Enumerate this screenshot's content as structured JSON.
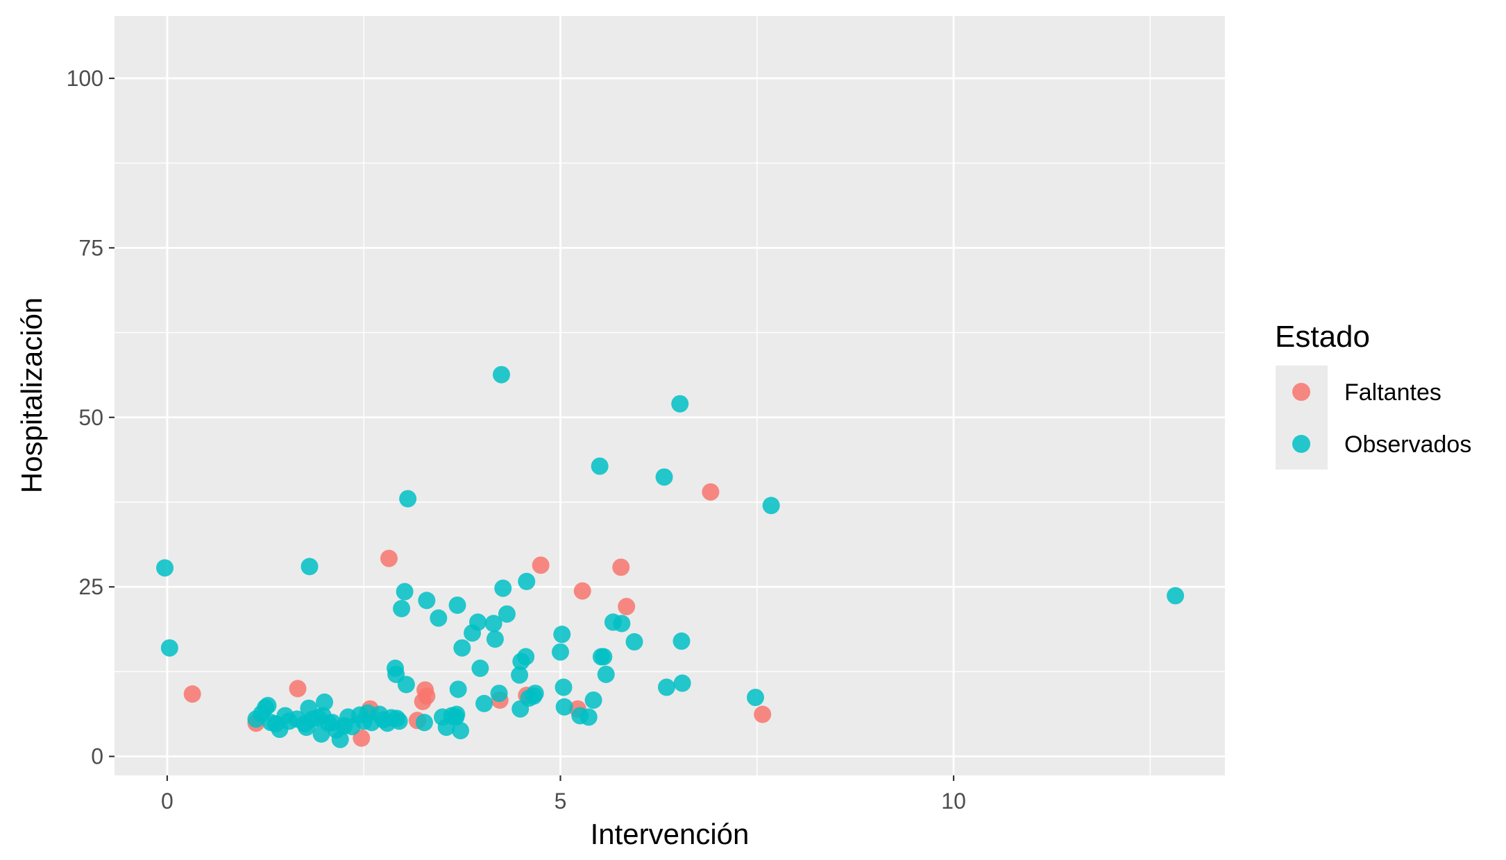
{
  "chart_data": {
    "type": "scatter",
    "title": "",
    "xlabel": "Intervención",
    "ylabel": "Hospitalización",
    "xlim": [
      -0.67,
      13.45
    ],
    "ylim": [
      -2.8,
      109.2
    ],
    "x_ticks": [
      0,
      5,
      10
    ],
    "y_ticks": [
      0,
      25,
      50,
      75,
      100
    ],
    "grid": true,
    "legend": {
      "title": "Estado",
      "position": "right"
    },
    "series": [
      {
        "name": "Faltantes",
        "color": "#F8766D",
        "points": [
          [
            0.32,
            9.2
          ],
          [
            1.13,
            4.9
          ],
          [
            1.66,
            10.0
          ],
          [
            2.47,
            2.7
          ],
          [
            2.58,
            7.0
          ],
          [
            2.82,
            29.2
          ],
          [
            3.18,
            5.3
          ],
          [
            3.25,
            8.1
          ],
          [
            3.28,
            9.8
          ],
          [
            3.3,
            8.9
          ],
          [
            4.23,
            8.3
          ],
          [
            4.57,
            9.0
          ],
          [
            4.75,
            28.2
          ],
          [
            5.22,
            7.0
          ],
          [
            5.28,
            24.4
          ],
          [
            5.77,
            27.9
          ],
          [
            5.84,
            22.1
          ],
          [
            6.91,
            39.0
          ],
          [
            7.57,
            6.2
          ]
        ]
      },
      {
        "name": "Observados",
        "color": "#00BFC4",
        "points": [
          [
            -0.03,
            27.8
          ],
          [
            0.03,
            16.0
          ],
          [
            1.13,
            5.5
          ],
          [
            1.2,
            6.3
          ],
          [
            1.25,
            7.2
          ],
          [
            1.28,
            7.5
          ],
          [
            1.32,
            5.0
          ],
          [
            1.38,
            4.8
          ],
          [
            1.43,
            4.0
          ],
          [
            1.5,
            6.0
          ],
          [
            1.55,
            5.2
          ],
          [
            1.65,
            5.5
          ],
          [
            1.75,
            4.8
          ],
          [
            1.77,
            4.3
          ],
          [
            1.8,
            7.1
          ],
          [
            1.81,
            28.0
          ],
          [
            1.85,
            5.5
          ],
          [
            1.92,
            5.7
          ],
          [
            1.96,
            3.3
          ],
          [
            1.98,
            6.0
          ],
          [
            2.0,
            8.0
          ],
          [
            2.05,
            4.9
          ],
          [
            2.1,
            5.0
          ],
          [
            2.15,
            3.9
          ],
          [
            2.2,
            2.5
          ],
          [
            2.25,
            4.5
          ],
          [
            2.3,
            5.8
          ],
          [
            2.35,
            4.4
          ],
          [
            2.45,
            6.1
          ],
          [
            2.5,
            5.2
          ],
          [
            2.55,
            6.4
          ],
          [
            2.6,
            5.0
          ],
          [
            2.7,
            6.2
          ],
          [
            2.75,
            5.4
          ],
          [
            2.8,
            4.9
          ],
          [
            2.85,
            5.7
          ],
          [
            2.9,
            13.0
          ],
          [
            2.91,
            12.1
          ],
          [
            2.92,
            5.6
          ],
          [
            2.95,
            5.2
          ],
          [
            2.98,
            21.8
          ],
          [
            3.02,
            24.3
          ],
          [
            3.04,
            10.6
          ],
          [
            3.06,
            38.0
          ],
          [
            3.27,
            5.0
          ],
          [
            3.3,
            23.0
          ],
          [
            3.45,
            20.4
          ],
          [
            3.5,
            5.8
          ],
          [
            3.55,
            4.3
          ],
          [
            3.62,
            6.0
          ],
          [
            3.67,
            5.8
          ],
          [
            3.68,
            6.2
          ],
          [
            3.69,
            22.3
          ],
          [
            3.7,
            9.9
          ],
          [
            3.73,
            3.8
          ],
          [
            3.75,
            16.0
          ],
          [
            3.88,
            18.2
          ],
          [
            3.95,
            19.8
          ],
          [
            3.98,
            13.0
          ],
          [
            4.03,
            7.8
          ],
          [
            4.15,
            19.6
          ],
          [
            4.17,
            17.3
          ],
          [
            4.22,
            9.3
          ],
          [
            4.25,
            56.3
          ],
          [
            4.27,
            24.8
          ],
          [
            4.32,
            21.0
          ],
          [
            4.48,
            12.0
          ],
          [
            4.49,
            7.0
          ],
          [
            4.5,
            14.0
          ],
          [
            4.56,
            14.7
          ],
          [
            4.57,
            25.8
          ],
          [
            4.6,
            8.6
          ],
          [
            4.66,
            8.9
          ],
          [
            4.68,
            9.3
          ],
          [
            5.0,
            15.4
          ],
          [
            5.02,
            18.0
          ],
          [
            5.04,
            10.2
          ],
          [
            5.05,
            7.3
          ],
          [
            5.25,
            6.0
          ],
          [
            5.36,
            5.8
          ],
          [
            5.42,
            8.3
          ],
          [
            5.5,
            42.8
          ],
          [
            5.52,
            14.7
          ],
          [
            5.55,
            14.7
          ],
          [
            5.58,
            12.1
          ],
          [
            5.67,
            19.8
          ],
          [
            5.78,
            19.6
          ],
          [
            5.94,
            16.9
          ],
          [
            6.32,
            41.2
          ],
          [
            6.35,
            10.2
          ],
          [
            6.52,
            52.0
          ],
          [
            6.54,
            17.0
          ],
          [
            6.55,
            10.8
          ],
          [
            7.48,
            8.7
          ],
          [
            7.68,
            37.0
          ],
          [
            12.82,
            23.7
          ]
        ]
      }
    ]
  }
}
